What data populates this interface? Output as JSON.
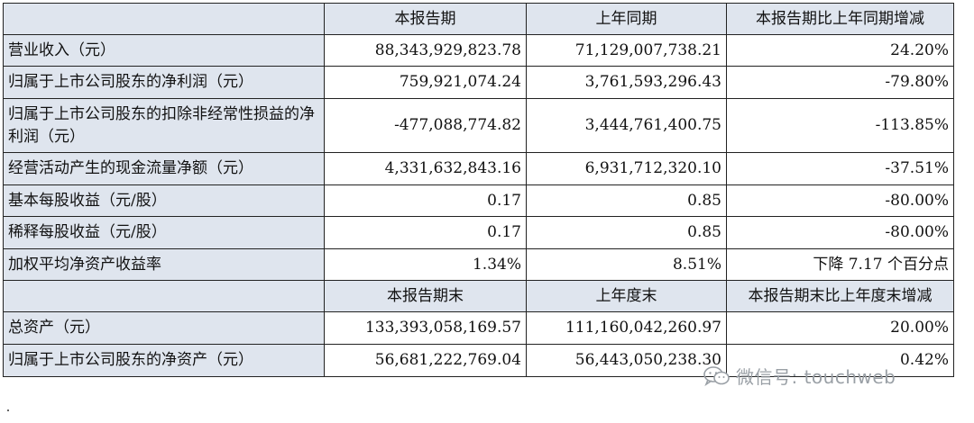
{
  "header1": [
    "",
    "本报告期",
    "上年同期",
    "本报告期比上年同期增减"
  ],
  "rows1": [
    {
      "label": "营业收入（元）",
      "current": "88,343,929,823.78",
      "prior": "71,129,007,738.21",
      "change": "24.20%"
    },
    {
      "label": "归属于上市公司股东的净利润（元）",
      "current": "759,921,074.24",
      "prior": "3,761,593,296.43",
      "change": "-79.80%"
    },
    {
      "label": "归属于上市公司股东的扣除非经常性损益的净利润（元）",
      "current": "-477,088,774.82",
      "prior": "3,444,761,400.75",
      "change": "-113.85%"
    },
    {
      "label": "经营活动产生的现金流量净额（元）",
      "current": "4,331,632,843.16",
      "prior": "6,931,712,320.10",
      "change": "-37.51%"
    },
    {
      "label": "基本每股收益（元/股）",
      "current": "0.17",
      "prior": "0.85",
      "change": "-80.00%"
    },
    {
      "label": "稀释每股收益（元/股）",
      "current": "0.17",
      "prior": "0.85",
      "change": "-80.00%"
    },
    {
      "label": "加权平均净资产收益率",
      "current": "1.34%",
      "prior": "8.51%",
      "change": "下降 7.17 个百分点"
    }
  ],
  "header2": [
    "",
    "本报告期末",
    "上年度末",
    "本报告期末比上年度末增减"
  ],
  "rows2": [
    {
      "label": "总资产（元）",
      "current": "133,393,058,169.57",
      "prior": "111,160,042,260.97",
      "change": "20.00%"
    },
    {
      "label": "归属于上市公司股东的净资产（元）",
      "current": "56,681,222,769.04",
      "prior": "56,443,050,238.30",
      "change": "0.42%"
    }
  ],
  "watermark": {
    "text": "微信号: touchweb",
    "icon": "wechat-icon"
  }
}
